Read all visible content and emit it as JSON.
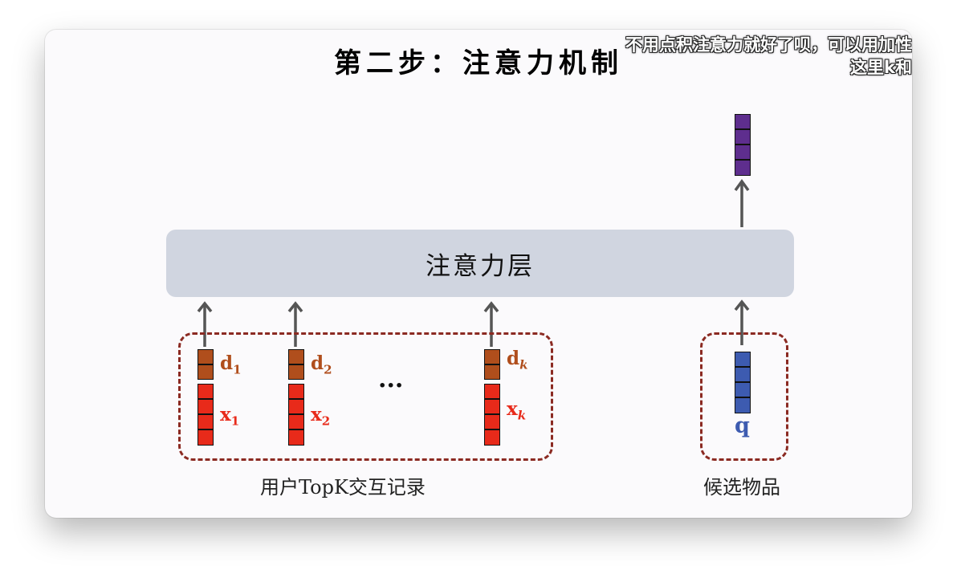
{
  "slide": {
    "title": "第二步：注意力机制",
    "subtitle_line1": "不用点积注意力就好了呗，可以用加性",
    "subtitle_line2": "这里k和"
  },
  "attention_layer": {
    "label": "注意力层"
  },
  "history_group": {
    "caption": "用户TopK交互记录",
    "ellipsis": "···",
    "items": [
      {
        "d_label": "d",
        "d_sub": "1",
        "x_label": "x",
        "x_sub": "1"
      },
      {
        "d_label": "d",
        "d_sub": "2",
        "x_label": "x",
        "x_sub": "2"
      },
      {
        "d_label": "d",
        "d_sub": "k",
        "x_label": "x",
        "x_sub": "k"
      }
    ]
  },
  "candidate_group": {
    "caption": "候选物品",
    "q_label": "q"
  },
  "colors": {
    "d_vector": "#b04e1c",
    "x_vector": "#e82a1a",
    "q_vector": "#3d5bb0",
    "output_vector": "#5e2e8e",
    "group_border": "#8b2a22",
    "arrow": "#555555"
  }
}
